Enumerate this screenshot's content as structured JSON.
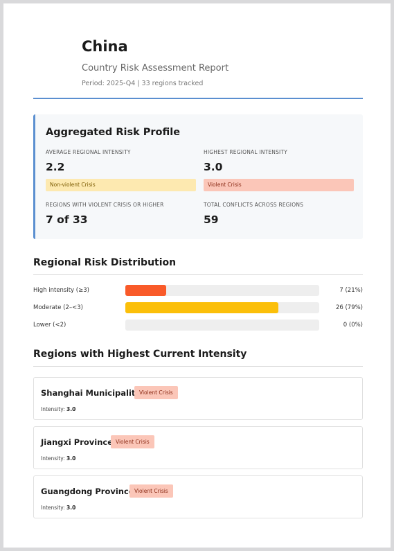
{
  "report": {
    "country": "China",
    "subtitle": "Country Risk Assessment Report",
    "period": "Period: 2025-Q4 | 33 regions tracked"
  },
  "profile": {
    "title": "Aggregated Risk Profile",
    "metrics": [
      {
        "label": "AVERAGE REGIONAL INTENSITY",
        "value": "2.2",
        "badge": "Non-violent Crisis"
      },
      {
        "label": "HIGHEST REGIONAL INTENSITY",
        "value": "3.0",
        "badge": "Violent Crisis"
      },
      {
        "label": "REGIONS WITH VIOLENT CRISIS OR HIGHER",
        "value": "7 of 33"
      },
      {
        "label": "TOTAL CONFLICTS ACROSS REGIONS",
        "value": "59"
      }
    ]
  },
  "distribution": {
    "title": "Regional Risk Distribution",
    "rows": [
      {
        "label": "High intensity (≥3)",
        "count": "7 (21%)",
        "fraction": 0.21,
        "color": "#f95a29"
      },
      {
        "label": "Moderate (2–<3)",
        "count": "26 (79%)",
        "fraction": 0.79,
        "color": "#fbbf0a"
      },
      {
        "label": "Lower (<2)",
        "count": "0 (0%)",
        "fraction": 0.0,
        "color": "#9e9e9e"
      }
    ]
  },
  "regions": {
    "title": "Regions with Highest Current Intensity",
    "intensity_label": "Intensity:",
    "items": [
      {
        "name": "Shanghai Municipality",
        "badge": "Violent Crisis",
        "intensity": "3.0"
      },
      {
        "name": "Jiangxi Province",
        "badge": "Violent Crisis",
        "intensity": "3.0"
      },
      {
        "name": "Guangdong Province",
        "badge": "Violent Crisis",
        "intensity": "3.0"
      }
    ]
  }
}
